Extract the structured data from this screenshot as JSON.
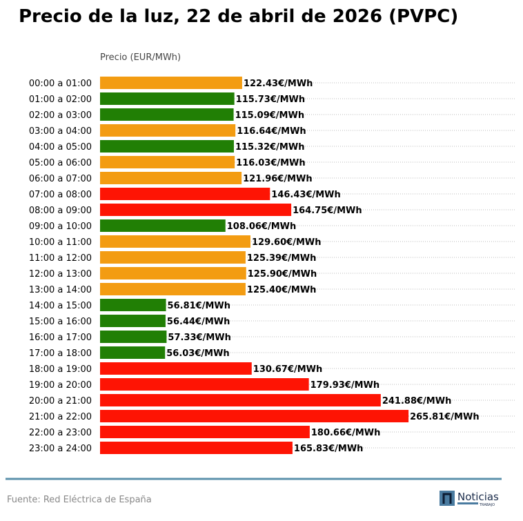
{
  "chart_data": {
    "type": "bar",
    "orientation": "horizontal",
    "title": "Precio de la luz, 22 de abril de 2026 (PVPC)",
    "xlabel": "Precio (EUR/MWh)",
    "ylabel": "",
    "xlim": [
      0,
      358
    ],
    "grid": true,
    "value_suffix": "€/MWh",
    "categories": [
      "00:00 a 01:00",
      "01:00 a 02:00",
      "02:00 a 03:00",
      "03:00 a 04:00",
      "04:00 a 05:00",
      "05:00 a 06:00",
      "06:00 a 07:00",
      "07:00 a 08:00",
      "08:00 a 09:00",
      "09:00 a 10:00",
      "10:00 a 11:00",
      "11:00 a 12:00",
      "12:00 a 13:00",
      "13:00 a 14:00",
      "14:00 a 15:00",
      "15:00 a 16:00",
      "16:00 a 17:00",
      "17:00 a 18:00",
      "18:00 a 19:00",
      "19:00 a 20:00",
      "20:00 a 21:00",
      "21:00 a 22:00",
      "22:00 a 23:00",
      "23:00 a 24:00"
    ],
    "values": [
      122.43,
      115.73,
      115.09,
      116.64,
      115.32,
      116.03,
      121.96,
      146.43,
      164.75,
      108.06,
      129.6,
      125.39,
      125.9,
      125.4,
      56.81,
      56.44,
      57.33,
      56.03,
      130.67,
      179.93,
      241.88,
      265.81,
      180.66,
      165.83
    ],
    "levels": [
      "mid",
      "low",
      "low",
      "mid",
      "low",
      "mid",
      "mid",
      "high",
      "high",
      "low",
      "mid",
      "mid",
      "mid",
      "mid",
      "low",
      "low",
      "low",
      "low",
      "high",
      "high",
      "high",
      "high",
      "high",
      "high"
    ]
  },
  "colors": {
    "low": "#217f05",
    "mid": "#f39c12",
    "high": "#fe1404",
    "footer_line": "#5b91ab",
    "logo": "#4a7ba0"
  },
  "footer": {
    "source": "Fuente: Red Eléctrica de España"
  },
  "logo": {
    "name": "Noticias",
    "sub": "TRABAJO"
  }
}
